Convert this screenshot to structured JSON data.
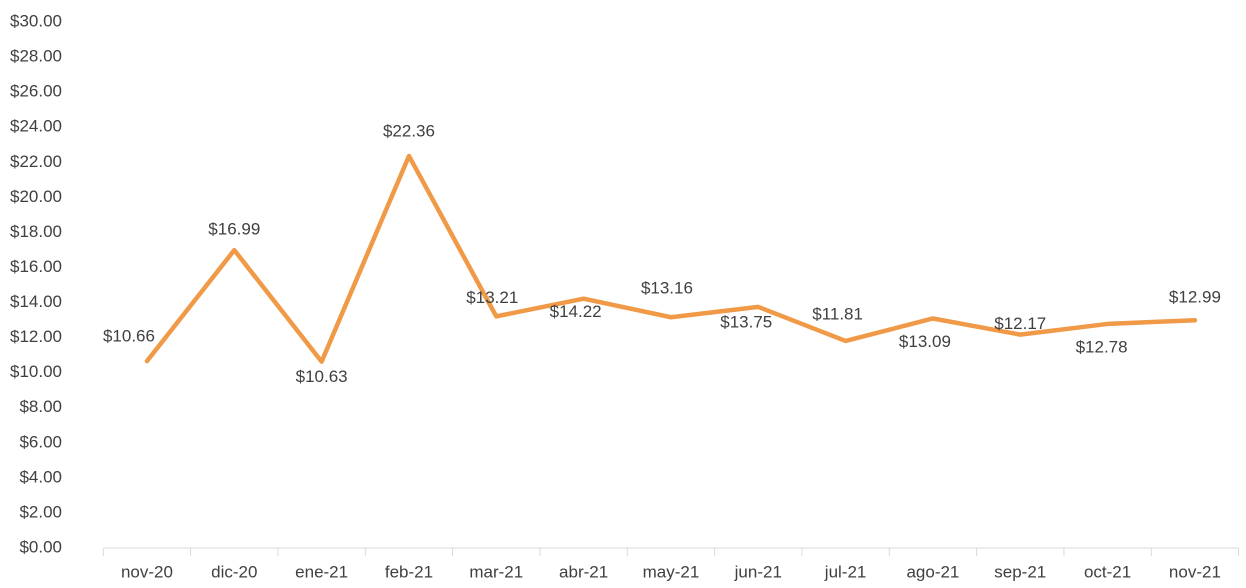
{
  "chart_data": {
    "type": "line",
    "categories": [
      "nov-20",
      "dic-20",
      "ene-21",
      "feb-21",
      "mar-21",
      "abr-21",
      "may-21",
      "jun-21",
      "jul-21",
      "ago-21",
      "sep-21",
      "oct-21",
      "nov-21"
    ],
    "series": [
      {
        "color": "#f09a48",
        "values": [
          10.66,
          16.99,
          10.63,
          22.36,
          13.21,
          14.22,
          13.16,
          13.75,
          11.81,
          13.09,
          12.17,
          12.78,
          12.99
        ],
        "value_labels": [
          "$10.66",
          "$16.99",
          "$10.63",
          "$22.36",
          "$13.21",
          "$14.22",
          "$13.16",
          "$13.75",
          "$11.81",
          "$13.09",
          "$12.17",
          "$12.78",
          "$12.99"
        ]
      }
    ],
    "ylim": [
      0,
      30
    ],
    "yticks": [
      {
        "value": 0,
        "label": "$0.00"
      },
      {
        "value": 2,
        "label": "$2.00"
      },
      {
        "value": 4,
        "label": "$4.00"
      },
      {
        "value": 6,
        "label": "$6.00"
      },
      {
        "value": 8,
        "label": "$8.00"
      },
      {
        "value": 10,
        "label": "$10.00"
      },
      {
        "value": 12,
        "label": "$12.00"
      },
      {
        "value": 14,
        "label": "$14.00"
      },
      {
        "value": 16,
        "label": "$16.00"
      },
      {
        "value": 18,
        "label": "$18.00"
      },
      {
        "value": 20,
        "label": "$20.00"
      },
      {
        "value": 22,
        "label": "$22.00"
      },
      {
        "value": 24,
        "label": "$24.00"
      },
      {
        "value": 26,
        "label": "$26.00"
      },
      {
        "value": 28,
        "label": "$28.00"
      },
      {
        "value": 30,
        "label": "$30.00"
      }
    ],
    "grid": false
  }
}
